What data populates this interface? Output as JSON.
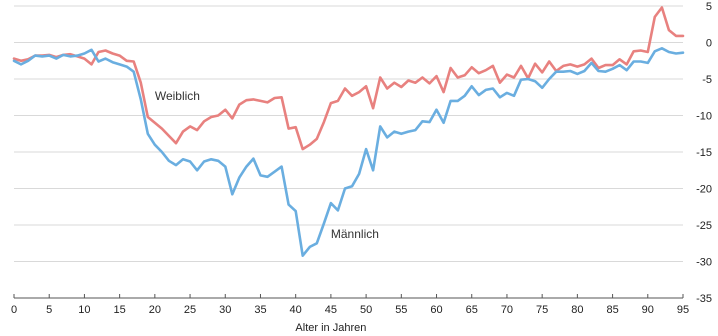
{
  "chart_data": {
    "type": "line",
    "title": "",
    "xlabel": "Alter in Jahren",
    "ylabel": "",
    "xlim": [
      0,
      95
    ],
    "ylim": [
      -35,
      5
    ],
    "x_ticks": [
      0,
      5,
      10,
      15,
      20,
      25,
      30,
      35,
      40,
      45,
      50,
      55,
      60,
      65,
      70,
      75,
      80,
      85,
      90,
      95
    ],
    "x_tick_labels": [
      "0",
      "5",
      "10",
      "15",
      "20",
      "25",
      "30",
      "35",
      "40",
      "45",
      "50",
      "55",
      "60",
      "65",
      "70",
      "75",
      "80",
      "85",
      "90",
      "95"
    ],
    "y_ticks": [
      5,
      0,
      -5,
      -10,
      -15,
      -20,
      -25,
      -30,
      -35
    ],
    "y_tick_labels": [
      "5",
      "0",
      "-5",
      "-10",
      "-15",
      "-20",
      "-25",
      "-30",
      "-35"
    ],
    "grid": true,
    "series": [
      {
        "name": "Weiblich",
        "color": "#e8817f",
        "label_at": [
          20,
          -7.9
        ],
        "x": [
          0,
          1,
          2,
          3,
          4,
          5,
          6,
          7,
          8,
          9,
          10,
          11,
          12,
          13,
          14,
          15,
          16,
          17,
          18,
          19,
          20,
          21,
          22,
          23,
          24,
          25,
          26,
          27,
          28,
          29,
          30,
          31,
          32,
          33,
          34,
          35,
          36,
          37,
          38,
          39,
          40,
          41,
          42,
          43,
          44,
          45,
          46,
          47,
          48,
          49,
          50,
          51,
          52,
          53,
          54,
          55,
          56,
          57,
          58,
          59,
          60,
          61,
          62,
          63,
          64,
          65,
          66,
          67,
          68,
          69,
          70,
          71,
          72,
          73,
          74,
          75,
          76,
          77,
          78,
          79,
          80,
          81,
          82,
          83,
          84,
          85,
          86,
          87,
          88,
          89,
          90,
          91,
          92,
          93,
          94,
          95
        ],
        "values": [
          -2.2,
          -2.5,
          -2.3,
          -1.8,
          -1.8,
          -1.7,
          -2.0,
          -1.7,
          -1.6,
          -1.9,
          -2.2,
          -3.0,
          -1.3,
          -1.1,
          -1.5,
          -1.8,
          -2.5,
          -2.6,
          -5.5,
          -10.2,
          -11.0,
          -11.8,
          -12.8,
          -13.8,
          -12.2,
          -11.5,
          -12.0,
          -10.8,
          -10.2,
          -10.0,
          -9.2,
          -10.4,
          -8.5,
          -7.9,
          -7.8,
          -8.0,
          -8.2,
          -7.6,
          -7.5,
          -11.8,
          -11.6,
          -14.6,
          -14.0,
          -13.2,
          -10.9,
          -8.3,
          -8.0,
          -6.3,
          -7.3,
          -6.8,
          -6.0,
          -9.0,
          -4.8,
          -6.3,
          -5.5,
          -6.1,
          -5.2,
          -5.5,
          -4.8,
          -5.6,
          -4.6,
          -6.8,
          -3.5,
          -4.8,
          -4.5,
          -3.4,
          -4.2,
          -3.8,
          -3.2,
          -5.5,
          -4.4,
          -4.8,
          -3.2,
          -4.9,
          -2.9,
          -4.1,
          -2.6,
          -3.9,
          -3.2,
          -3.0,
          -3.3,
          -3.0,
          -2.2,
          -3.5,
          -3.1,
          -3.1,
          -2.3,
          -3.0,
          -1.2,
          -1.1,
          -1.3,
          3.5,
          4.8,
          1.7,
          0.9,
          0.9
        ]
      },
      {
        "name": "Männlich",
        "color": "#6aaee0",
        "label_at": [
          45,
          -26.8
        ],
        "x": [
          0,
          1,
          2,
          3,
          4,
          5,
          6,
          7,
          8,
          9,
          10,
          11,
          12,
          13,
          14,
          15,
          16,
          17,
          18,
          19,
          20,
          21,
          22,
          23,
          24,
          25,
          26,
          27,
          28,
          29,
          30,
          31,
          32,
          33,
          34,
          35,
          36,
          37,
          38,
          39,
          40,
          41,
          42,
          43,
          44,
          45,
          46,
          47,
          48,
          49,
          50,
          51,
          52,
          53,
          54,
          55,
          56,
          57,
          58,
          59,
          60,
          61,
          62,
          63,
          64,
          65,
          66,
          67,
          68,
          69,
          70,
          71,
          72,
          73,
          74,
          75,
          76,
          77,
          78,
          79,
          80,
          81,
          82,
          83,
          84,
          85,
          86,
          87,
          88,
          89,
          90,
          91,
          92,
          93,
          94,
          95
        ],
        "values": [
          -2.5,
          -3.0,
          -2.5,
          -1.8,
          -1.9,
          -1.8,
          -2.2,
          -1.7,
          -1.9,
          -1.8,
          -1.5,
          -1.0,
          -2.6,
          -2.2,
          -2.7,
          -3.0,
          -3.3,
          -4.0,
          -7.8,
          -12.5,
          -14.0,
          -15.0,
          -16.2,
          -16.8,
          -16.0,
          -16.3,
          -17.5,
          -16.3,
          -16.0,
          -16.2,
          -17.0,
          -20.8,
          -18.5,
          -17.0,
          -15.9,
          -18.2,
          -18.4,
          -17.7,
          -17.0,
          -22.2,
          -23.1,
          -29.2,
          -28.0,
          -27.5,
          -24.8,
          -22.0,
          -23.0,
          -20.0,
          -19.7,
          -18.0,
          -14.6,
          -17.5,
          -11.5,
          -13.0,
          -12.2,
          -12.5,
          -12.2,
          -12.0,
          -10.8,
          -10.9,
          -9.2,
          -11.0,
          -8.0,
          -8.0,
          -7.3,
          -6.0,
          -7.2,
          -6.5,
          -6.3,
          -7.5,
          -6.9,
          -7.3,
          -5.1,
          -5.0,
          -5.3,
          -6.2,
          -5.0,
          -4.0,
          -4.0,
          -3.9,
          -4.3,
          -3.9,
          -2.8,
          -3.9,
          -4.0,
          -3.6,
          -3.1,
          -3.8,
          -2.6,
          -2.6,
          -2.8,
          -1.2,
          -0.8,
          -1.3,
          -1.5,
          -1.4
        ]
      }
    ]
  }
}
